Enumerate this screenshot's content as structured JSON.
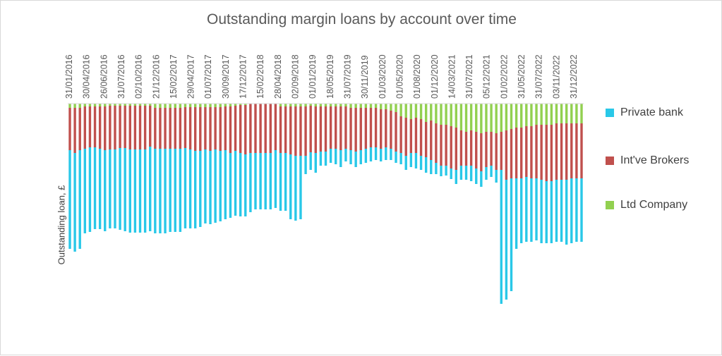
{
  "chart_data": {
    "type": "bar",
    "stacked": true,
    "orientation": "downward",
    "title": "Outstanding margin loans by account over time",
    "ylabel": "Outstanding loan, £",
    "xlabel": "",
    "x_tick_labels": [
      "31/01/2016",
      "30/04/2016",
      "26/06/2016",
      "31/07/2016",
      "02/10/2016",
      "21/12/2016",
      "15/02/2017",
      "29/04/2017",
      "01/07/2017",
      "30/09/2017",
      "17/12/2017",
      "15/02/2018",
      "28/04/2018",
      "02/09/2018",
      "01/01/2019",
      "18/05/2019",
      "31/07/2019",
      "30/11/2019",
      "01/03/2020",
      "01/05/2020",
      "01/08/2020",
      "01/12/2020",
      "14/03/2021",
      "31/07/2021",
      "05/12/2021",
      "01/02/2022",
      "31/05/2022",
      "31/07/2022",
      "03/11/2022",
      "31/12/2022"
    ],
    "legend_position": "right",
    "grid": false,
    "series": [
      {
        "name": "Ltd Company",
        "color": "#92d050",
        "values": [
          6,
          6,
          6,
          4,
          4,
          4,
          4,
          4,
          3,
          3,
          3,
          3,
          3,
          3,
          3,
          3,
          3,
          6,
          6,
          6,
          6,
          6,
          6,
          5,
          5,
          5,
          5,
          5,
          5,
          5,
          5,
          4,
          4,
          3,
          2,
          2,
          0,
          0,
          0,
          0,
          0,
          0,
          4,
          4,
          4,
          4,
          4,
          4,
          3,
          4,
          4,
          4,
          4,
          4,
          4,
          4,
          6,
          6,
          6,
          6,
          6,
          6,
          8,
          8,
          10,
          12,
          18,
          20,
          22,
          20,
          22,
          26,
          24,
          28,
          30,
          30,
          32,
          34,
          38,
          40,
          38,
          40,
          42,
          40,
          40,
          42,
          40,
          38,
          36,
          34,
          34,
          32,
          32,
          30,
          30,
          30,
          30,
          28,
          28,
          28,
          28,
          28,
          28
        ]
      },
      {
        "name": "Int've Brokers",
        "color": "#c0504d",
        "values": [
          60,
          64,
          60,
          60,
          58,
          58,
          60,
          62,
          62,
          62,
          60,
          60,
          62,
          62,
          62,
          62,
          58,
          58,
          58,
          58,
          58,
          58,
          58,
          58,
          60,
          62,
          62,
          60,
          62,
          60,
          62,
          62,
          66,
          64,
          68,
          70,
          70,
          70,
          70,
          70,
          70,
          66,
          66,
          66,
          68,
          70,
          70,
          70,
          66,
          66,
          64,
          64,
          60,
          60,
          62,
          60,
          60,
          62,
          60,
          58,
          56,
          56,
          56,
          54,
          54,
          56,
          52,
          54,
          48,
          50,
          52,
          50,
          56,
          56,
          58,
          58,
          60,
          60,
          50,
          48,
          50,
          52,
          54,
          50,
          48,
          52,
          54,
          70,
          70,
          72,
          72,
          72,
          74,
          76,
          78,
          80,
          80,
          80,
          80,
          80,
          78,
          78,
          78
        ]
      },
      {
        "name": "Private bank",
        "color": "#29c8e8",
        "values": [
          140,
          140,
          140,
          120,
          120,
          116,
          114,
          115,
          112,
          112,
          116,
          118,
          118,
          118,
          118,
          118,
          120,
          120,
          120,
          120,
          118,
          118,
          118,
          114,
          112,
          110,
          108,
          105,
          104,
          104,
          100,
          98,
          92,
          92,
          90,
          88,
          84,
          80,
          80,
          80,
          80,
          82,
          82,
          82,
          92,
          92,
          90,
          26,
          25,
          28,
          20,
          20,
          20,
          22,
          24,
          18,
          20,
          22,
          20,
          20,
          20,
          18,
          18,
          18,
          16,
          16,
          16,
          20,
          20,
          22,
          20,
          22,
          20,
          16,
          15,
          14,
          15,
          20,
          20,
          20,
          22,
          22,
          22,
          18,
          16,
          18,
          190,
          170,
          160,
          100,
          92,
          92,
          90,
          88,
          90,
          88,
          88,
          88,
          88,
          92,
          92,
          90,
          90
        ]
      }
    ]
  }
}
